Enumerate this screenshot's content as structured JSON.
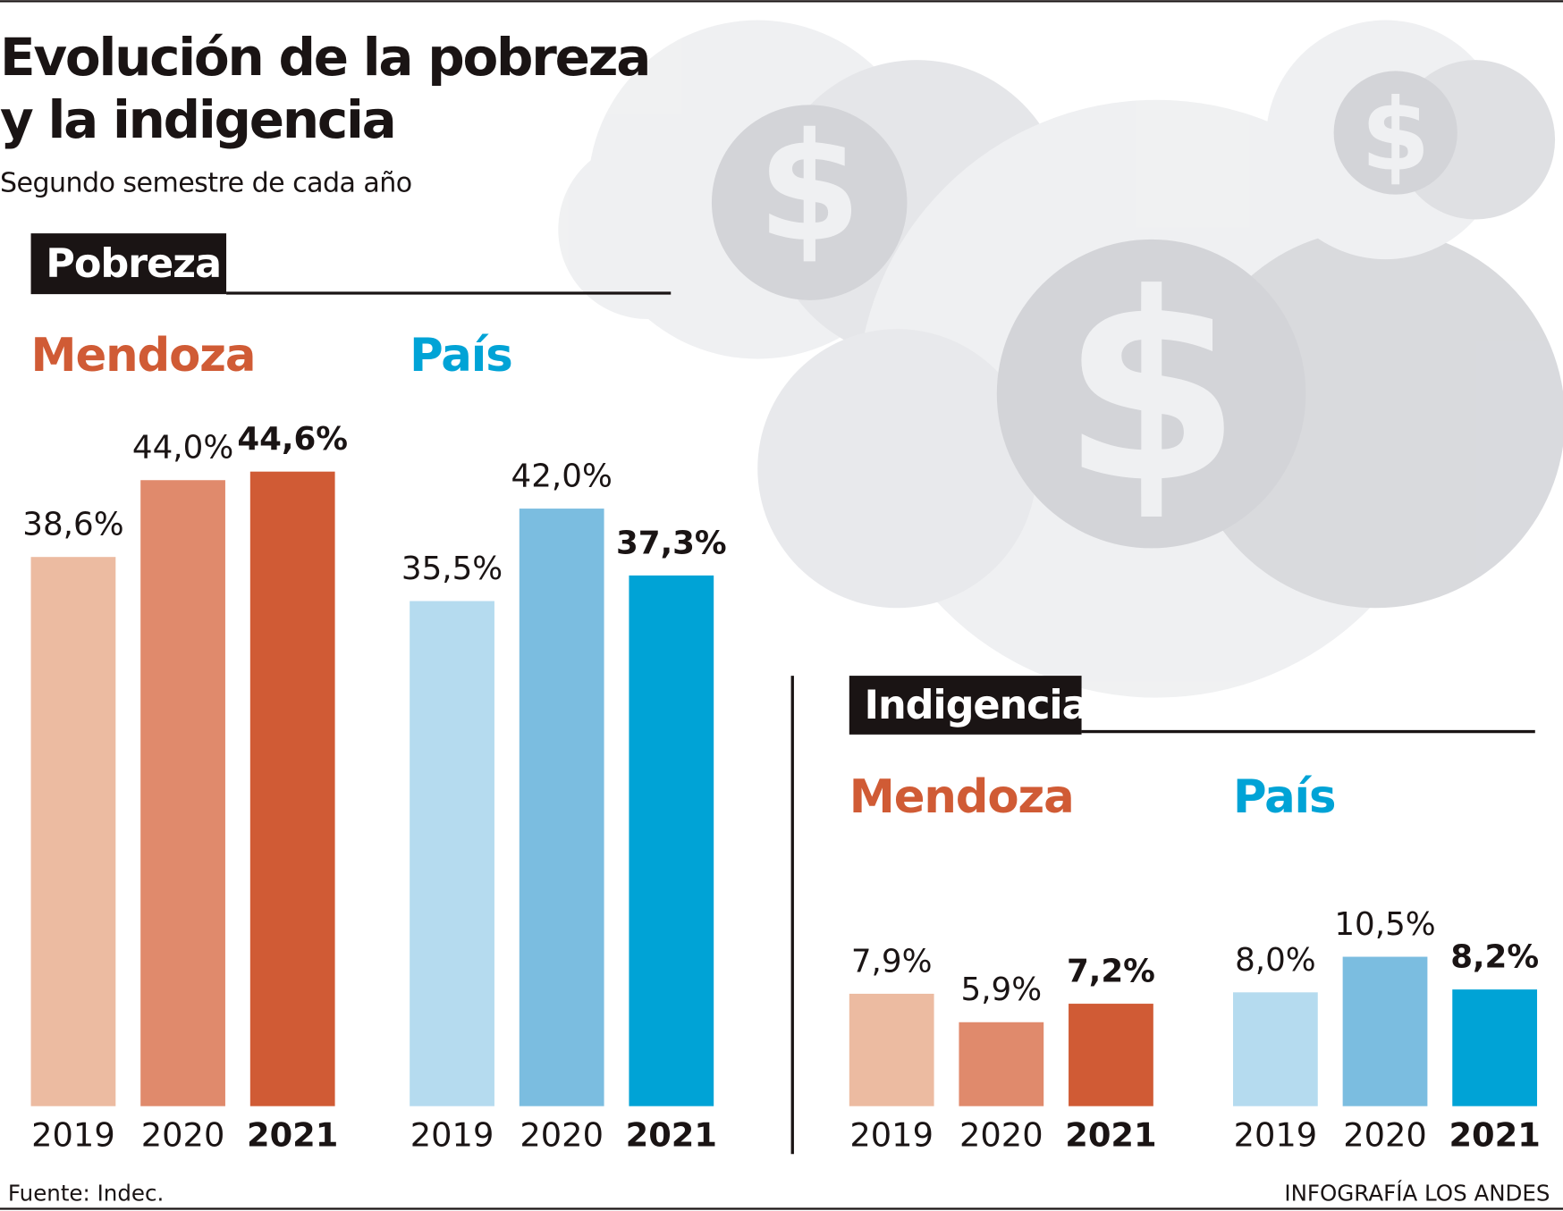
{
  "title": [
    "Evolución de la pobreza",
    "y la indigencia"
  ],
  "subtitle": "Segundo semestre de cada año",
  "sections": [
    "Pobreza",
    "Indigencia"
  ],
  "source": "Fuente: Indec.",
  "credit": "INFOGRAFÍA LOS ANDES",
  "chart_data": [
    {
      "type": "bar",
      "title": "Mendoza",
      "title_color": "#d05b35",
      "categories": [
        "2019",
        "2020",
        "2021"
      ],
      "values": [
        38.6,
        44.0,
        44.6
      ],
      "value_labels": [
        "38,6%",
        "44,0%",
        "44,6%"
      ],
      "colors": [
        "#ecbba1",
        "#e08a6c",
        "#d05b35"
      ]
    },
    {
      "type": "bar",
      "title": "País",
      "title_color": "#00a3d6",
      "categories": [
        "2019",
        "2020",
        "2021"
      ],
      "values": [
        35.5,
        42.0,
        37.3
      ],
      "value_labels": [
        "35,5%",
        "42,0%",
        "37,3%"
      ],
      "colors": [
        "#b5dbef",
        "#7bbde0",
        "#00a3d6"
      ]
    },
    {
      "type": "bar",
      "title": "Mendoza",
      "title_color": "#d05b35",
      "categories": [
        "2019",
        "2020",
        "2021"
      ],
      "values": [
        7.9,
        5.9,
        7.2
      ],
      "value_labels": [
        "7,9%",
        "5,9%",
        "7,2%"
      ],
      "colors": [
        "#ecbba1",
        "#e08a6c",
        "#d05b35"
      ]
    },
    {
      "type": "bar",
      "title": "País",
      "title_color": "#00a3d6",
      "categories": [
        "2019",
        "2020",
        "2021"
      ],
      "values": [
        8.0,
        10.5,
        8.2
      ],
      "value_labels": [
        "8,0%",
        "10,5%",
        "8,2%"
      ],
      "colors": [
        "#b5dbef",
        "#7bbde0",
        "#00a3d6"
      ]
    }
  ]
}
